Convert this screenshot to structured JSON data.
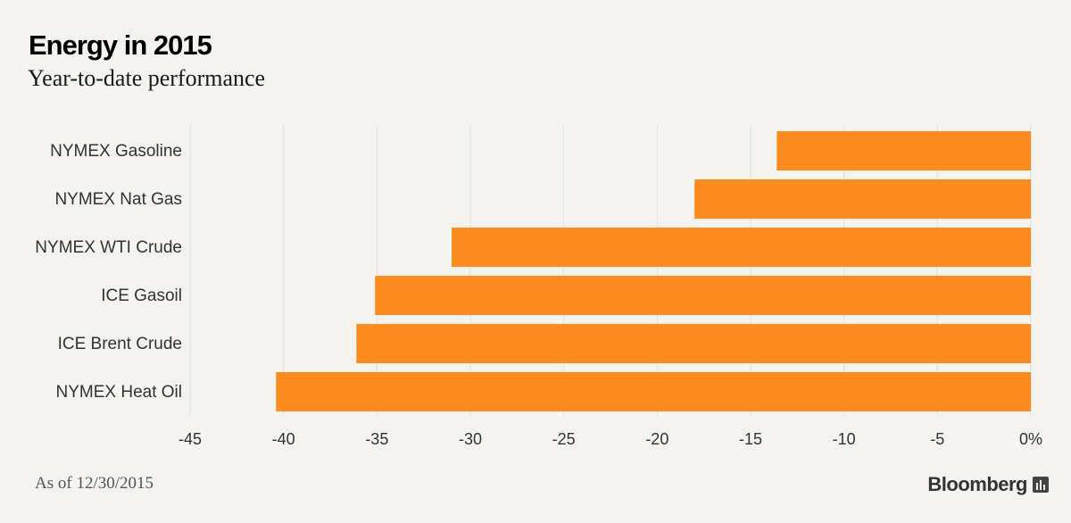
{
  "chart_data": {
    "type": "bar",
    "orientation": "horizontal",
    "title": "Energy in 2015",
    "subtitle": "Year-to-date performance",
    "categories": [
      "NYMEX Gasoline",
      "NYMEX Nat Gas",
      "NYMEX WTI Crude",
      "ICE Gasoil",
      "ICE Brent Crude",
      "NYMEX Heat Oil"
    ],
    "values": [
      -13.6,
      -18.0,
      -31.0,
      -35.1,
      -36.1,
      -40.4
    ],
    "xlim": [
      -45,
      0
    ],
    "x_ticks": [
      -45,
      -40,
      -35,
      -30,
      -25,
      -20,
      -15,
      -10,
      -5,
      0
    ],
    "x_tick_labels": [
      "-45",
      "-40",
      "-35",
      "-30",
      "-25",
      "-20",
      "-15",
      "-10",
      "-5",
      "0%"
    ],
    "grid": true,
    "bar_color": "#fb8b1e",
    "grid_color": "#e1e0db"
  },
  "footnote": "As of 12/30/2015",
  "brand": {
    "name": "Bloomberg",
    "icon": "bloomberg-chart-icon"
  }
}
